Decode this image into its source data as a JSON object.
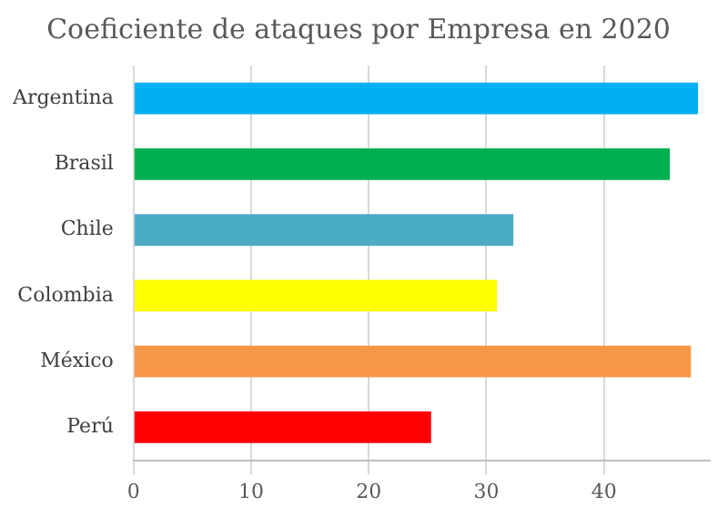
{
  "chart_data": {
    "type": "bar",
    "orientation": "horizontal",
    "title": "Coeficiente de ataques por Empresa en 2020",
    "categories": [
      "Argentina",
      "Brasil",
      "Chile",
      "Colombia",
      "México",
      "Perú"
    ],
    "values": [
      48,
      45.6,
      32.3,
      30.9,
      47.4,
      25.3
    ],
    "colors": [
      "#00b0f0",
      "#00b050",
      "#4bacc6",
      "#ffff00",
      "#f79646",
      "#ff0000"
    ],
    "xlim": [
      0,
      49
    ],
    "xticks": [
      0,
      10,
      20,
      30,
      40
    ],
    "grid": "x",
    "legend": false
  }
}
